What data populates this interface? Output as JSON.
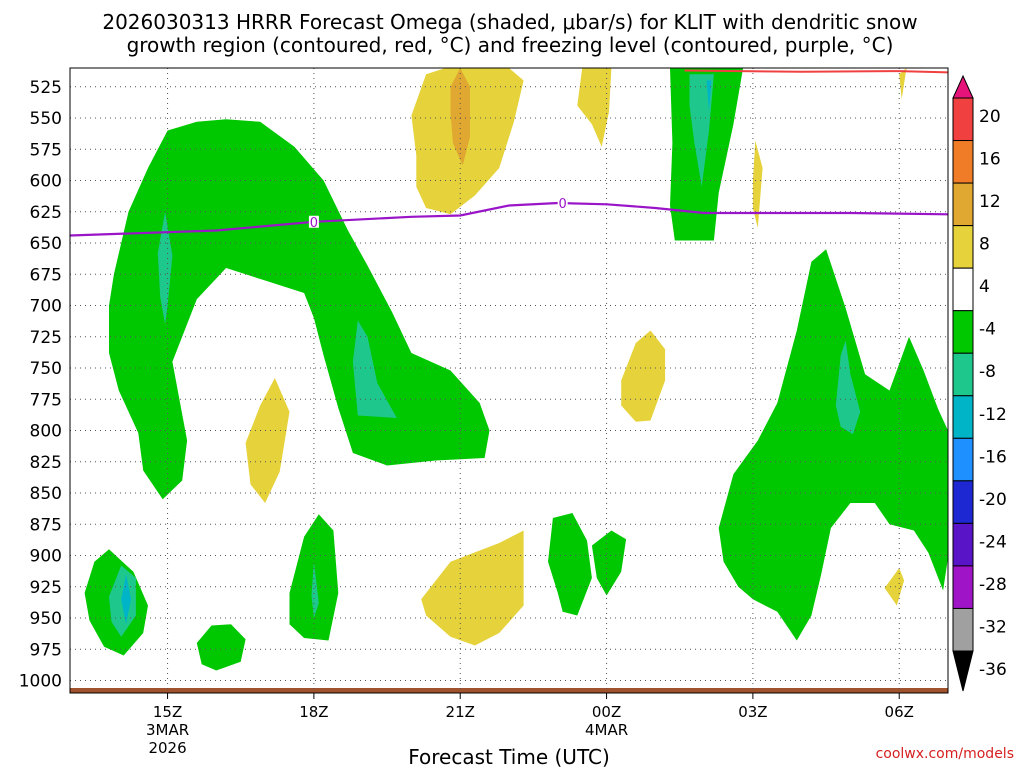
{
  "title_line1": "2026030313 HRRR Forecast Omega (shaded, μbar/s) for KLIT with dendritic snow",
  "title_line2": "growth region (contoured, red, °C) and freezing level (contoured, purple, °C)",
  "credit": "coolwx.com/models",
  "chart_data": {
    "type": "contour",
    "title": "2026030313 HRRR Forecast Omega (shaded, μbar/s) for KLIT with dendritic snow growth region (contoured, red, °C) and freezing level (contoured, purple, °C)",
    "xlabel": "Forecast Time (UTC)",
    "ylabel": "",
    "x_range_hours_from_3MAR_13Z": [
      0,
      18
    ],
    "y_range_mb": [
      1010,
      510
    ],
    "y_ticks": [
      525,
      550,
      575,
      600,
      625,
      650,
      675,
      700,
      725,
      750,
      775,
      800,
      825,
      850,
      875,
      900,
      925,
      950,
      975,
      1000
    ],
    "x_ticks": [
      {
        "hours": 2,
        "label": "15Z",
        "sub1": "3MAR",
        "sub2": "2026"
      },
      {
        "hours": 5,
        "label": "18Z",
        "sub1": "",
        "sub2": ""
      },
      {
        "hours": 8,
        "label": "21Z",
        "sub1": "",
        "sub2": ""
      },
      {
        "hours": 11,
        "label": "00Z",
        "sub1": "4MAR",
        "sub2": ""
      },
      {
        "hours": 14,
        "label": "03Z",
        "sub1": "",
        "sub2": ""
      },
      {
        "hours": 17,
        "label": "06Z",
        "sub1": "",
        "sub2": ""
      }
    ],
    "grid": true,
    "colorbar": {
      "labels": [
        "20",
        "16",
        "12",
        "8",
        "4",
        "-4",
        "-8",
        "-12",
        "-16",
        "-20",
        "-24",
        "-28",
        "-32",
        "-36"
      ],
      "colors": [
        "#f04040",
        "#f07c28",
        "#e0a830",
        "#e6d23a",
        "#ffffff",
        "#00c800",
        "#1ec88c",
        "#00b4c8",
        "#1e90ff",
        "#1e28d2",
        "#5a14c8",
        "#a014c8",
        "#a0a0a0"
      ],
      "top_color": "#e6147a",
      "bottom_color": "#000000"
    },
    "freezing_level": {
      "label": "0",
      "color": "#9a14c8",
      "points": [
        [
          0,
          644
        ],
        [
          3,
          640
        ],
        [
          5,
          633
        ],
        [
          7,
          629
        ],
        [
          8,
          628
        ],
        [
          9,
          620
        ],
        [
          10,
          618
        ],
        [
          11,
          619
        ],
        [
          12,
          622
        ],
        [
          13,
          626
        ],
        [
          14,
          626
        ],
        [
          16,
          626
        ],
        [
          18,
          627
        ]
      ]
    },
    "dendritic_line": {
      "color": "#f04040",
      "points": [
        [
          12.6,
          512
        ],
        [
          15,
          513
        ],
        [
          17,
          512.5
        ],
        [
          18,
          513.5
        ]
      ]
    },
    "shaded_regions": [
      {
        "level": "-4",
        "color": "#00c800",
        "points": [
          [
            0.8,
            700
          ],
          [
            0.9,
            675
          ],
          [
            1.2,
            625
          ],
          [
            1.6,
            590
          ],
          [
            2.0,
            560
          ],
          [
            2.6,
            553
          ],
          [
            3.2,
            551
          ],
          [
            3.9,
            553
          ],
          [
            4.6,
            573
          ],
          [
            5.2,
            600
          ],
          [
            5.7,
            640
          ],
          [
            6.1,
            668
          ],
          [
            6.6,
            705
          ],
          [
            7.0,
            738
          ],
          [
            7.8,
            752
          ],
          [
            8.4,
            778
          ],
          [
            8.6,
            800
          ],
          [
            8.5,
            822
          ],
          [
            7.5,
            824
          ],
          [
            6.5,
            828
          ],
          [
            5.8,
            818
          ],
          [
            5.5,
            782
          ],
          [
            5.2,
            740
          ],
          [
            5.0,
            710
          ],
          [
            4.8,
            690
          ],
          [
            4.0,
            680
          ],
          [
            3.2,
            670
          ],
          [
            2.6,
            695
          ],
          [
            2.1,
            745
          ],
          [
            2.4,
            808
          ],
          [
            2.3,
            840
          ],
          [
            1.9,
            855
          ],
          [
            1.5,
            832
          ],
          [
            1.4,
            802
          ],
          [
            1.0,
            768
          ],
          [
            0.8,
            738
          ]
        ]
      },
      {
        "level": "-4",
        "color": "#00c800",
        "points": [
          [
            12.3,
            510
          ],
          [
            13.8,
            510
          ],
          [
            13.6,
            555
          ],
          [
            13.3,
            610
          ],
          [
            13.2,
            648
          ],
          [
            12.4,
            648
          ],
          [
            12.3,
            620
          ],
          [
            12.35,
            570
          ]
        ]
      },
      {
        "level": "-4",
        "color": "#00c800",
        "points": [
          [
            13.3,
            878
          ],
          [
            13.6,
            835
          ],
          [
            14.1,
            808
          ],
          [
            14.5,
            778
          ],
          [
            14.9,
            720
          ],
          [
            15.2,
            665
          ],
          [
            15.5,
            655
          ],
          [
            15.9,
            702
          ],
          [
            16.3,
            755
          ],
          [
            16.8,
            768
          ],
          [
            17.2,
            725
          ],
          [
            17.5,
            752
          ],
          [
            17.8,
            783
          ],
          [
            18.0,
            800
          ],
          [
            18.0,
            902
          ],
          [
            17.9,
            928
          ],
          [
            17.6,
            898
          ],
          [
            17.3,
            880
          ],
          [
            16.8,
            875
          ],
          [
            16.5,
            858
          ],
          [
            16.0,
            858
          ],
          [
            15.6,
            878
          ],
          [
            15.4,
            915
          ],
          [
            15.2,
            948
          ],
          [
            14.9,
            968
          ],
          [
            14.5,
            945
          ],
          [
            14.0,
            935
          ],
          [
            13.7,
            925
          ],
          [
            13.4,
            905
          ]
        ]
      },
      {
        "level": "-4",
        "color": "#00c800",
        "points": [
          [
            0.3,
            930
          ],
          [
            0.5,
            905
          ],
          [
            0.8,
            895
          ],
          [
            1.3,
            913
          ],
          [
            1.6,
            940
          ],
          [
            1.5,
            962
          ],
          [
            1.1,
            980
          ],
          [
            0.7,
            973
          ],
          [
            0.4,
            952
          ]
        ]
      },
      {
        "level": "-4",
        "color": "#00c800",
        "points": [
          [
            2.6,
            970
          ],
          [
            2.9,
            956
          ],
          [
            3.3,
            955
          ],
          [
            3.6,
            967
          ],
          [
            3.5,
            985
          ],
          [
            3.0,
            992
          ],
          [
            2.7,
            987
          ]
        ]
      },
      {
        "level": "-4",
        "color": "#00c800",
        "points": [
          [
            4.5,
            930
          ],
          [
            4.8,
            885
          ],
          [
            5.1,
            867
          ],
          [
            5.4,
            880
          ],
          [
            5.5,
            930
          ],
          [
            5.3,
            968
          ],
          [
            4.8,
            966
          ],
          [
            4.5,
            955
          ]
        ]
      },
      {
        "level": "-4",
        "color": "#00c800",
        "points": [
          [
            10.0,
            930
          ],
          [
            9.8,
            905
          ],
          [
            9.9,
            870
          ],
          [
            10.3,
            866
          ],
          [
            10.6,
            888
          ],
          [
            10.7,
            918
          ],
          [
            10.4,
            948
          ],
          [
            10.1,
            945
          ]
        ]
      },
      {
        "level": "-4",
        "color": "#00c800",
        "points": [
          [
            10.7,
            892
          ],
          [
            11.1,
            880
          ],
          [
            11.4,
            887
          ],
          [
            11.3,
            913
          ],
          [
            11.0,
            932
          ],
          [
            10.8,
            918
          ]
        ]
      },
      {
        "level": "-8",
        "color": "#1ec88c",
        "points": [
          [
            1.8,
            658
          ],
          [
            1.95,
            625
          ],
          [
            2.1,
            660
          ],
          [
            2.0,
            700
          ],
          [
            1.95,
            715
          ],
          [
            1.85,
            693
          ]
        ]
      },
      {
        "level": "-8",
        "color": "#1ec88c",
        "points": [
          [
            5.8,
            745
          ],
          [
            5.9,
            712
          ],
          [
            6.1,
            725
          ],
          [
            6.3,
            762
          ],
          [
            6.7,
            790
          ],
          [
            5.9,
            788
          ]
        ]
      },
      {
        "level": "-8",
        "color": "#1ec88c",
        "points": [
          [
            12.7,
            515
          ],
          [
            13.2,
            515
          ],
          [
            13.1,
            560
          ],
          [
            12.95,
            605
          ],
          [
            12.8,
            570
          ],
          [
            12.7,
            540
          ]
        ]
      },
      {
        "level": "-8",
        "color": "#1ec88c",
        "points": [
          [
            15.7,
            780
          ],
          [
            15.8,
            740
          ],
          [
            15.9,
            728
          ],
          [
            16.0,
            755
          ],
          [
            16.2,
            785
          ],
          [
            16.05,
            803
          ],
          [
            15.8,
            797
          ]
        ]
      },
      {
        "level": "-8",
        "color": "#1ec88c",
        "points": [
          [
            0.8,
            933
          ],
          [
            1.05,
            908
          ],
          [
            1.35,
            918
          ],
          [
            1.35,
            948
          ],
          [
            1.05,
            965
          ],
          [
            0.85,
            953
          ]
        ]
      },
      {
        "level": "-8",
        "color": "#1ec88c",
        "points": [
          [
            4.95,
            932
          ],
          [
            5.0,
            905
          ],
          [
            5.1,
            938
          ],
          [
            5.0,
            950
          ]
        ]
      },
      {
        "level": "-12",
        "color": "#00b4c8",
        "points": [
          [
            1.05,
            935
          ],
          [
            1.15,
            915
          ],
          [
            1.25,
            935
          ],
          [
            1.15,
            955
          ]
        ]
      },
      {
        "level": "-12",
        "color": "#00b4c8",
        "points": [
          [
            13.05,
            520
          ],
          [
            13.15,
            520
          ],
          [
            13.1,
            545
          ]
        ]
      },
      {
        "level": "4",
        "color": "#e6d23a",
        "points": [
          [
            7.1,
            580
          ],
          [
            7.0,
            548
          ],
          [
            7.3,
            515
          ],
          [
            7.7,
            510
          ],
          [
            9.0,
            510
          ],
          [
            9.3,
            520
          ],
          [
            9.1,
            553
          ],
          [
            8.8,
            590
          ],
          [
            8.3,
            612
          ],
          [
            7.8,
            627
          ],
          [
            7.3,
            622
          ],
          [
            7.1,
            605
          ]
        ]
      },
      {
        "level": "4",
        "color": "#e6d23a",
        "points": [
          [
            10.4,
            540
          ],
          [
            10.5,
            510
          ],
          [
            11.1,
            510
          ],
          [
            11.05,
            545
          ],
          [
            10.9,
            573
          ],
          [
            10.7,
            555
          ]
        ]
      },
      {
        "level": "4",
        "color": "#e6d23a",
        "points": [
          [
            14.0,
            600
          ],
          [
            14.05,
            568
          ],
          [
            14.2,
            590
          ],
          [
            14.1,
            638
          ],
          [
            14.0,
            622
          ]
        ]
      },
      {
        "level": "4",
        "color": "#e6d23a",
        "points": [
          [
            17.0,
            515
          ],
          [
            17.15,
            510
          ],
          [
            17.05,
            535
          ]
        ]
      },
      {
        "level": "4",
        "color": "#e6d23a",
        "points": [
          [
            11.3,
            760
          ],
          [
            11.6,
            730
          ],
          [
            11.9,
            720
          ],
          [
            12.2,
            735
          ],
          [
            12.2,
            760
          ],
          [
            11.9,
            792
          ],
          [
            11.6,
            793
          ],
          [
            11.3,
            780
          ]
        ]
      },
      {
        "level": "4",
        "color": "#e6d23a",
        "points": [
          [
            3.6,
            810
          ],
          [
            3.9,
            780
          ],
          [
            4.2,
            758
          ],
          [
            4.5,
            785
          ],
          [
            4.3,
            833
          ],
          [
            4.0,
            858
          ],
          [
            3.7,
            843
          ]
        ]
      },
      {
        "level": "4",
        "color": "#e6d23a",
        "points": [
          [
            7.2,
            935
          ],
          [
            7.8,
            905
          ],
          [
            8.8,
            890
          ],
          [
            9.3,
            880
          ],
          [
            9.3,
            940
          ],
          [
            8.8,
            962
          ],
          [
            8.3,
            972
          ],
          [
            7.8,
            965
          ],
          [
            7.3,
            948
          ]
        ]
      },
      {
        "level": "4",
        "color": "#e6d23a",
        "points": [
          [
            16.7,
            926
          ],
          [
            17.0,
            910
          ],
          [
            17.1,
            920
          ],
          [
            16.95,
            940
          ]
        ]
      },
      {
        "level": "8",
        "color": "#e0a830",
        "points": [
          [
            7.8,
            525
          ],
          [
            8.0,
            500
          ],
          [
            8.2,
            525
          ],
          [
            8.2,
            565
          ],
          [
            8.05,
            588
          ],
          [
            7.85,
            570
          ],
          [
            7.8,
            545
          ]
        ]
      }
    ],
    "surface_band": {
      "color": "#a0522d",
      "top_mb": 1006,
      "bottom_mb": 1010
    }
  }
}
